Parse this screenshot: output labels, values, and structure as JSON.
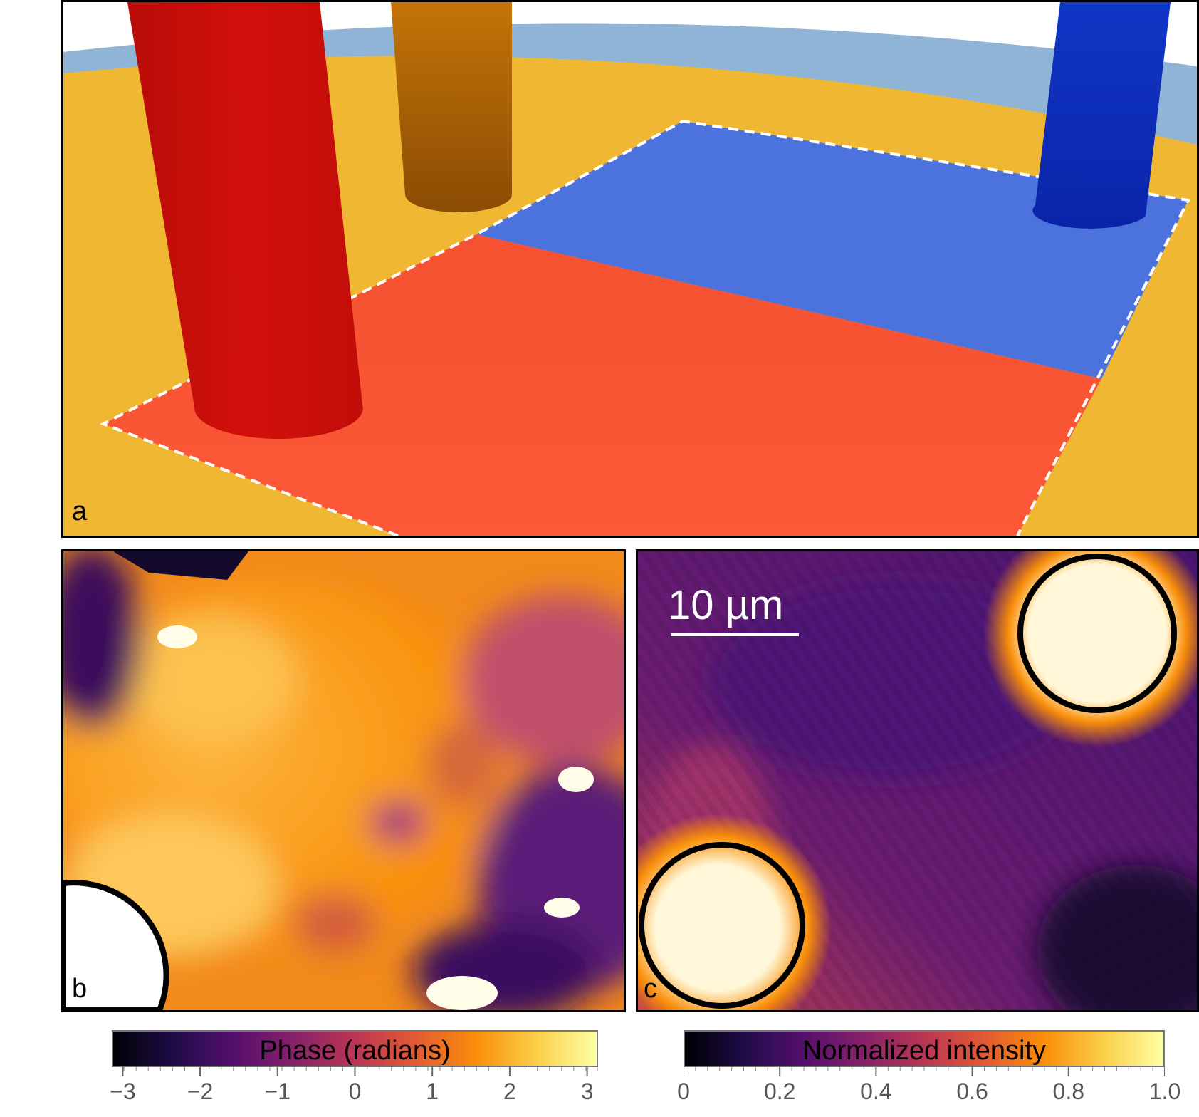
{
  "panels": {
    "a": {
      "letter": "a"
    },
    "b": {
      "letter": "b"
    },
    "c": {
      "letter": "c",
      "scalebar_label": "10 µm"
    }
  },
  "colorbars": {
    "phase": {
      "title": "Phase (radians)",
      "range": [
        -3.14159,
        3.14159
      ],
      "ticks": [
        {
          "value": -3,
          "label": "−3"
        },
        {
          "value": -2,
          "label": "−2"
        },
        {
          "value": -1,
          "label": "−1"
        },
        {
          "value": 0,
          "label": "0"
        },
        {
          "value": 1,
          "label": "1"
        },
        {
          "value": 2,
          "label": "2"
        },
        {
          "value": 3,
          "label": "3"
        }
      ]
    },
    "intensity": {
      "title": "Normalized intensity",
      "range": [
        0,
        1
      ],
      "ticks": [
        {
          "value": 0,
          "label": "0"
        },
        {
          "value": 0.2,
          "label": "0.2"
        },
        {
          "value": 0.4,
          "label": "0.4"
        },
        {
          "value": 0.6,
          "label": "0.6"
        },
        {
          "value": 0.8,
          "label": "0.8"
        },
        {
          "value": 1.0,
          "label": "1.0"
        }
      ]
    }
  },
  "colors": {
    "substrate": "#f0b832",
    "outer_ring": "#8fb4d6",
    "red_post": "#cf0e0a",
    "orange_post": "#b86a06",
    "blue_post": "#0d2fbb",
    "red_region": "#fb5535",
    "blue_region": "#4c72de",
    "colormap": "inferno"
  }
}
